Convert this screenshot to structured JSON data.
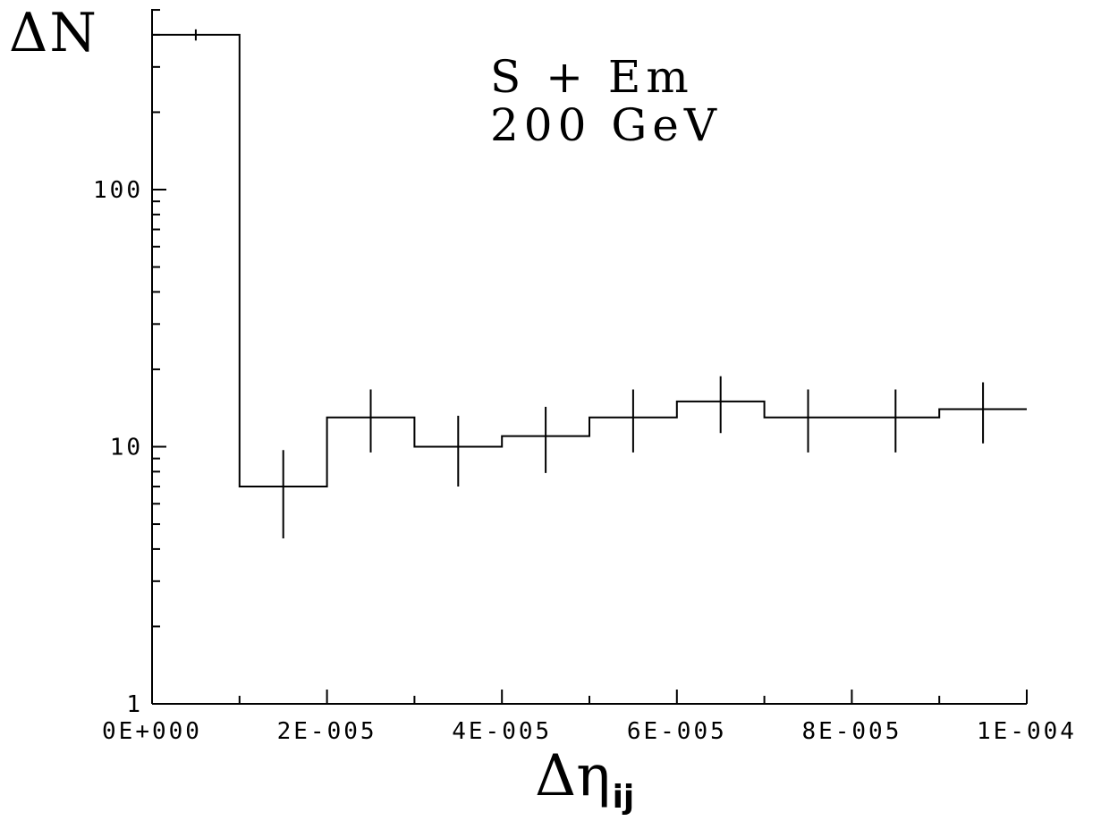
{
  "chart_data": {
    "type": "histogram",
    "title": "",
    "annotations": [
      "S + Em",
      "200 GeV"
    ],
    "xlabel": "Δη",
    "xlabel_subscript": "ij",
    "ylabel": "ΔN",
    "x_scale": "linear",
    "y_scale": "log",
    "xlim": [
      0,
      0.0001
    ],
    "ylim": [
      1,
      500
    ],
    "x_tick_labels": [
      "0E+000",
      "2E-005",
      "4E-005",
      "6E-005",
      "8E-005",
      "1E-004"
    ],
    "y_tick_labels": [
      "1",
      "10",
      "100"
    ],
    "grid": false,
    "legend": false,
    "bin_edges": [
      0,
      1e-05,
      2e-05,
      3e-05,
      4e-05,
      5e-05,
      6e-05,
      7e-05,
      8e-05,
      9e-05,
      0.0001
    ],
    "values": [
      400,
      7,
      13,
      10,
      11,
      13,
      15,
      13,
      13,
      14
    ],
    "errors_low": [
      380,
      4.4,
      9.5,
      7,
      7.9,
      9.5,
      11.3,
      9.5,
      9.5,
      10.3
    ],
    "errors_high": [
      420,
      9.7,
      16.7,
      13.2,
      14.3,
      16.7,
      18.8,
      16.7,
      16.7,
      17.8
    ]
  }
}
